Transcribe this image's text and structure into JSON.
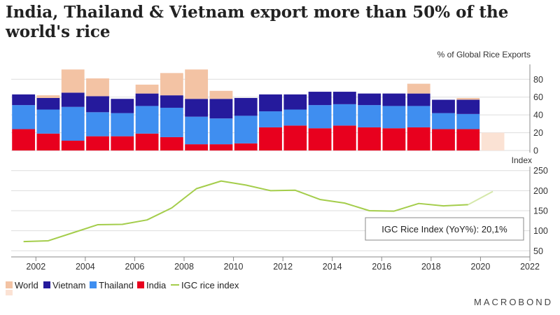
{
  "title": "India, Thailand & Vietnam export more than 50% of the world's rice",
  "brand": "MACROBOND",
  "colors": {
    "world": "#f3c3a4",
    "world_forecast": "#fbe2d4",
    "vietnam": "#251a9c",
    "thailand": "#3f8ef0",
    "india": "#e8001e",
    "igc": "#a4cd4b",
    "igc_forecast": "#d5e8aa",
    "grid": "#dddddd",
    "axis": "#888888"
  },
  "chart_data": [
    {
      "type": "bar",
      "stacked": true,
      "title": "",
      "ylabel": "% of Global Rice Exports",
      "ylim": [
        0,
        92
      ],
      "yticks": [
        0,
        20,
        40,
        60,
        80
      ],
      "x": [
        2001.5,
        2002.5,
        2003.5,
        2004.5,
        2005.5,
        2006.5,
        2007.5,
        2008.5,
        2009.5,
        2010.5,
        2011.5,
        2012.5,
        2013.5,
        2014.5,
        2015.5,
        2016.5,
        2017.5,
        2018.5,
        2019.5,
        2020.5
      ],
      "series": [
        {
          "name": "India",
          "values": [
            24,
            19,
            11,
            16,
            16,
            19,
            15,
            7,
            7,
            8,
            26,
            28,
            25,
            28,
            26,
            25,
            26,
            24,
            24,
            0
          ]
        },
        {
          "name": "Thailand",
          "values": [
            27,
            27,
            38,
            27,
            26,
            31,
            33,
            31,
            29,
            31,
            18,
            18,
            26,
            24,
            25,
            25,
            24,
            18,
            17,
            0
          ]
        },
        {
          "name": "Vietnam",
          "values": [
            12,
            13,
            16,
            18,
            16,
            14,
            14,
            20,
            22,
            20,
            19,
            17,
            15,
            14,
            13,
            14,
            14,
            15,
            16,
            0
          ]
        },
        {
          "name": "World",
          "values": [
            0,
            3,
            26,
            20,
            0,
            10,
            25,
            33,
            9,
            0,
            0,
            0,
            0,
            0,
            0,
            0,
            11,
            0,
            2,
            20
          ]
        }
      ],
      "forecast_index": 19
    },
    {
      "type": "line",
      "ylabel": "Index",
      "ylim": [
        40,
        260
      ],
      "yticks": [
        50,
        100,
        150,
        200,
        250
      ],
      "series": [
        {
          "name": "IGC rice index",
          "x": [
            2001.5,
            2002.5,
            2003.5,
            2004.5,
            2005.5,
            2006.5,
            2007.5,
            2008.5,
            2009.5,
            2010.5,
            2011.5,
            2012.5,
            2013.5,
            2014.5,
            2015.5,
            2016.5,
            2017.5,
            2018.5,
            2019.5
          ],
          "values": [
            73,
            75,
            95,
            115,
            116,
            127,
            157,
            205,
            224,
            214,
            200,
            201,
            178,
            169,
            150,
            149,
            168,
            162,
            165
          ]
        },
        {
          "name": "IGC rice index (forecast)",
          "x": [
            2019.5,
            2020.5
          ],
          "values": [
            165,
            198
          ]
        }
      ],
      "annotation": "IGC Rice Index (YoY%): 20,1%"
    }
  ],
  "xaxis": {
    "xlim": [
      2001,
      2022
    ],
    "ticks": [
      2002,
      2004,
      2006,
      2008,
      2010,
      2012,
      2014,
      2016,
      2018,
      2020,
      2022
    ]
  },
  "legend": [
    {
      "name": "World",
      "color_key": "world",
      "shape": "box"
    },
    {
      "name": "Vietnam",
      "color_key": "vietnam",
      "shape": "box"
    },
    {
      "name": "Thailand",
      "color_key": "thailand",
      "shape": "box"
    },
    {
      "name": "India",
      "color_key": "india",
      "shape": "box"
    },
    {
      "name": "IGC rice index",
      "color_key": "igc",
      "shape": "line"
    }
  ]
}
